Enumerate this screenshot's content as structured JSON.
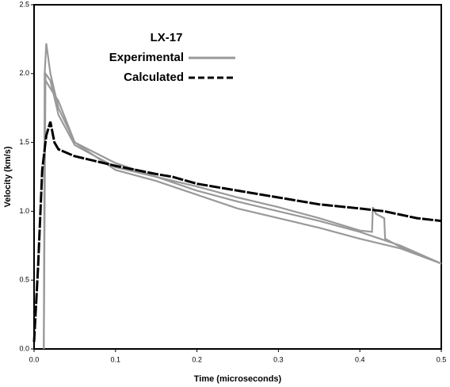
{
  "chart_data": {
    "type": "line",
    "legend_title": "LX-17",
    "xlabel": "Time  (microseconds)",
    "ylabel": "Velocity  (km/s)",
    "xlim": [
      0,
      0.5
    ],
    "ylim": [
      0,
      2.5
    ],
    "xticks": [
      {
        "value": 0,
        "label": "0.0"
      },
      0.1,
      0.2,
      0.3,
      0.4,
      0.5
    ],
    "yticks": [
      {
        "value": 0,
        "label": "0.0"
      },
      0.5,
      {
        "value": 1,
        "label": "1.0"
      },
      1.5,
      {
        "value": 2,
        "label": "2.0"
      },
      2.5
    ],
    "series": [
      {
        "name": "Experimental",
        "color": "#999999",
        "linestyle": "solid",
        "x": [
          0.012,
          0.013,
          0.015,
          0.02,
          0.03,
          0.05,
          0.1,
          0.15,
          0.2,
          0.25,
          0.3,
          0.35,
          0.4,
          0.45,
          0.5
        ],
        "values": [
          0,
          2.0,
          2.22,
          2.0,
          1.75,
          1.5,
          1.35,
          1.25,
          1.15,
          1.07,
          1.0,
          0.93,
          0.85,
          0.75,
          0.62
        ]
      },
      {
        "color": "#999999",
        "linestyle": "solid",
        "x": [
          0.012,
          0.014,
          0.02,
          0.03,
          0.05,
          0.1,
          0.15,
          0.2,
          0.25,
          0.3,
          0.35,
          0.4,
          0.415,
          0.416,
          0.42,
          0.43,
          0.431,
          0.45,
          0.5
        ],
        "values": [
          0,
          2.0,
          1.95,
          1.7,
          1.48,
          1.32,
          1.25,
          1.18,
          1.1,
          1.03,
          0.95,
          0.86,
          0.85,
          1.03,
          0.98,
          0.95,
          0.8,
          0.74,
          0.62
        ]
      },
      {
        "color": "#999999",
        "linestyle": "solid",
        "x": [
          0.014,
          0.03,
          0.05,
          0.1,
          0.15,
          0.2,
          0.25,
          0.3,
          0.35,
          0.4,
          0.45,
          0.5
        ],
        "values": [
          1.95,
          1.8,
          1.5,
          1.3,
          1.22,
          1.12,
          1.02,
          0.95,
          0.88,
          0.8,
          0.73,
          0.62
        ]
      },
      {
        "name": "Calculated",
        "color": "#000000",
        "linestyle": "dashed",
        "x": [
          0,
          0.005,
          0.01,
          0.015,
          0.02,
          0.025,
          0.03,
          0.05,
          0.1,
          0.15,
          0.17,
          0.2,
          0.25,
          0.3,
          0.35,
          0.4,
          0.43,
          0.47,
          0.5
        ],
        "values": [
          0.05,
          0.6,
          1.3,
          1.55,
          1.65,
          1.5,
          1.45,
          1.4,
          1.33,
          1.27,
          1.25,
          1.2,
          1.15,
          1.1,
          1.05,
          1.02,
          1.0,
          0.95,
          0.93
        ]
      }
    ]
  }
}
